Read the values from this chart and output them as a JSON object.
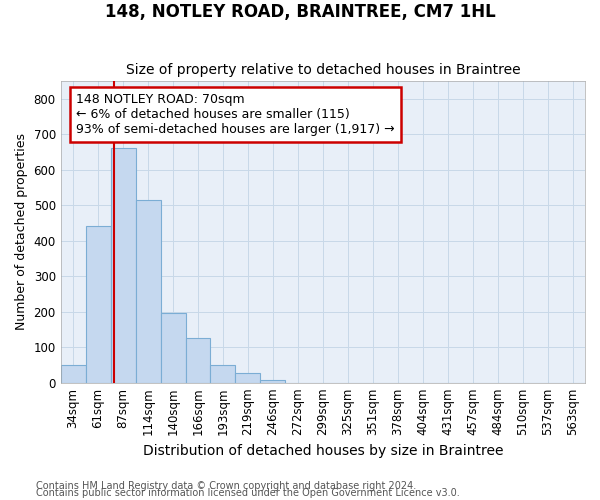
{
  "title": "148, NOTLEY ROAD, BRAINTREE, CM7 1HL",
  "subtitle": "Size of property relative to detached houses in Braintree",
  "xlabel": "Distribution of detached houses by size in Braintree",
  "ylabel": "Number of detached properties",
  "footnote1": "Contains HM Land Registry data © Crown copyright and database right 2024.",
  "footnote2": "Contains public sector information licensed under the Open Government Licence v3.0.",
  "bar_labels": [
    "34sqm",
    "61sqm",
    "87sqm",
    "114sqm",
    "140sqm",
    "166sqm",
    "193sqm",
    "219sqm",
    "246sqm",
    "272sqm",
    "299sqm",
    "325sqm",
    "351sqm",
    "378sqm",
    "404sqm",
    "431sqm",
    "457sqm",
    "484sqm",
    "510sqm",
    "537sqm",
    "563sqm"
  ],
  "bar_values": [
    50,
    440,
    660,
    515,
    195,
    125,
    50,
    27,
    8,
    0,
    0,
    0,
    0,
    0,
    0,
    0,
    0,
    0,
    0,
    0,
    0
  ],
  "bar_color": "#c5d8ef",
  "bar_edge_color": "#7badd4",
  "grid_color": "#c8d8e8",
  "bg_color": "#e8eff8",
  "property_line_x": 1.62,
  "property_line_color": "#cc0000",
  "annotation_text": "148 NOTLEY ROAD: 70sqm\n← 6% of detached houses are smaller (115)\n93% of semi-detached houses are larger (1,917) →",
  "annotation_box_color": "#cc0000",
  "ylim": [
    0,
    850
  ],
  "yticks": [
    0,
    100,
    200,
    300,
    400,
    500,
    600,
    700,
    800
  ],
  "title_fontsize": 12,
  "subtitle_fontsize": 10,
  "ylabel_fontsize": 9,
  "xlabel_fontsize": 10,
  "tick_fontsize": 8.5,
  "annot_fontsize": 9,
  "footnote_fontsize": 7
}
